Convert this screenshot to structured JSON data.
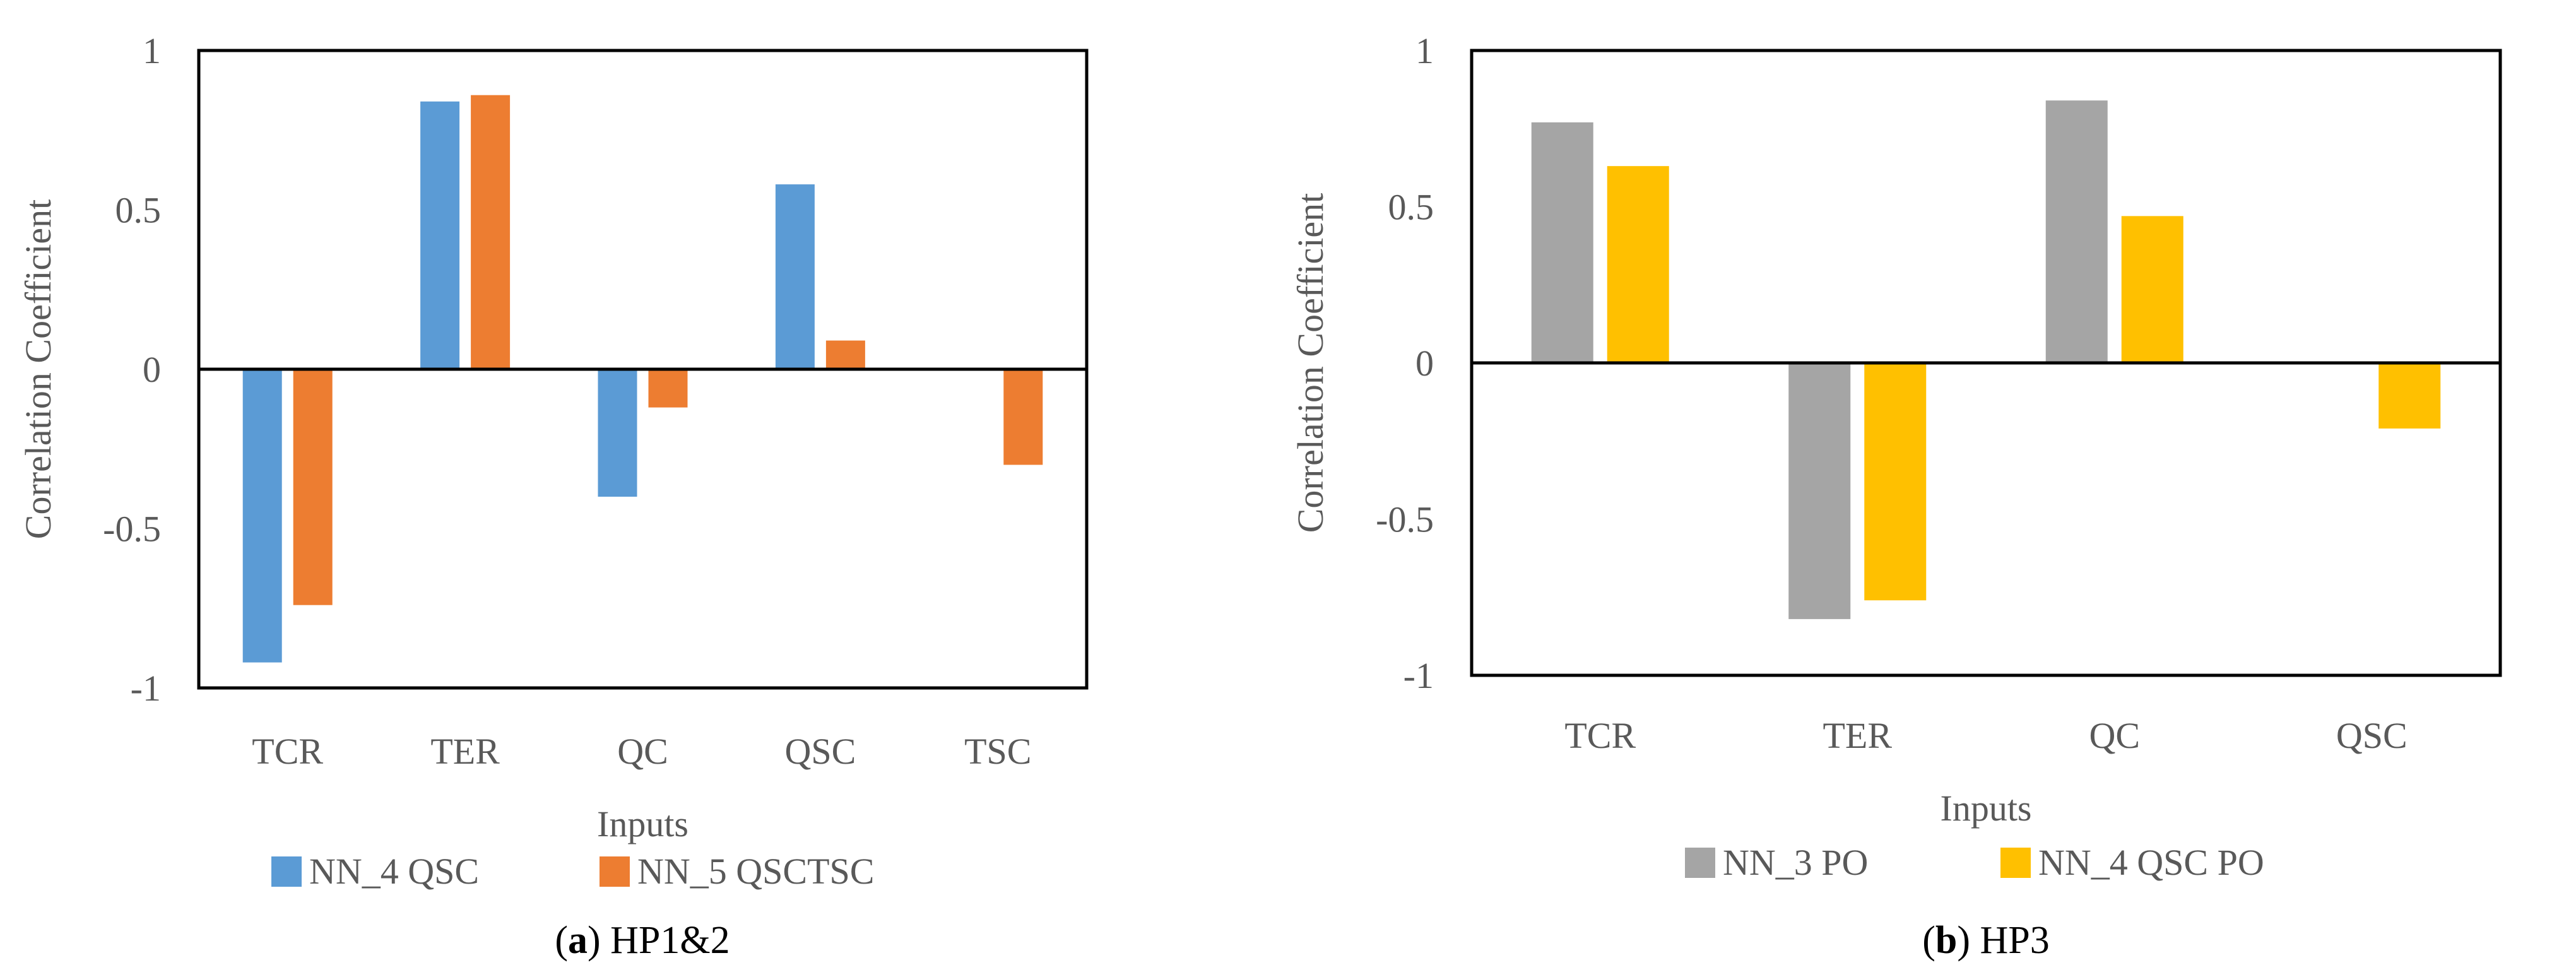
{
  "chart_data": [
    {
      "type": "bar",
      "panel_letter": "a",
      "caption_text": " HP1&2",
      "categories": [
        "TCR",
        "TER",
        "QC",
        "QSC",
        "TSC"
      ],
      "series": [
        {
          "name": "NN_4 QSC",
          "color": "#5B9BD5",
          "values": [
            -0.92,
            0.84,
            -0.4,
            0.58,
            null
          ]
        },
        {
          "name": "NN_5 QSCTSC",
          "color": "#ED7D31",
          "values": [
            -0.74,
            0.86,
            -0.12,
            0.09,
            -0.3
          ]
        }
      ],
      "xlabel": "Inputs",
      "ylabel": "Correlation Coefficient",
      "ylim": [
        -1,
        1
      ],
      "yticks": [
        "-1",
        "-0.5",
        "0",
        "0.5",
        "1"
      ],
      "legend_position": "bottom"
    },
    {
      "type": "bar",
      "panel_letter": "b",
      "caption_text": " HP3",
      "categories": [
        "TCR",
        "TER",
        "QC",
        "QSC"
      ],
      "series": [
        {
          "name": "NN_3 PO",
          "color": "#A5A5A5",
          "values": [
            0.77,
            -0.82,
            0.84,
            null
          ]
        },
        {
          "name": "NN_4 QSC PO",
          "color": "#FFC000",
          "values": [
            0.63,
            -0.76,
            0.47,
            -0.21
          ]
        }
      ],
      "xlabel": "Inputs",
      "ylabel": "Correlation Coefficient",
      "ylim": [
        -1,
        1
      ],
      "yticks": [
        "-1",
        "-0.5",
        "0",
        "0.5",
        "1"
      ],
      "legend_position": "bottom"
    }
  ]
}
